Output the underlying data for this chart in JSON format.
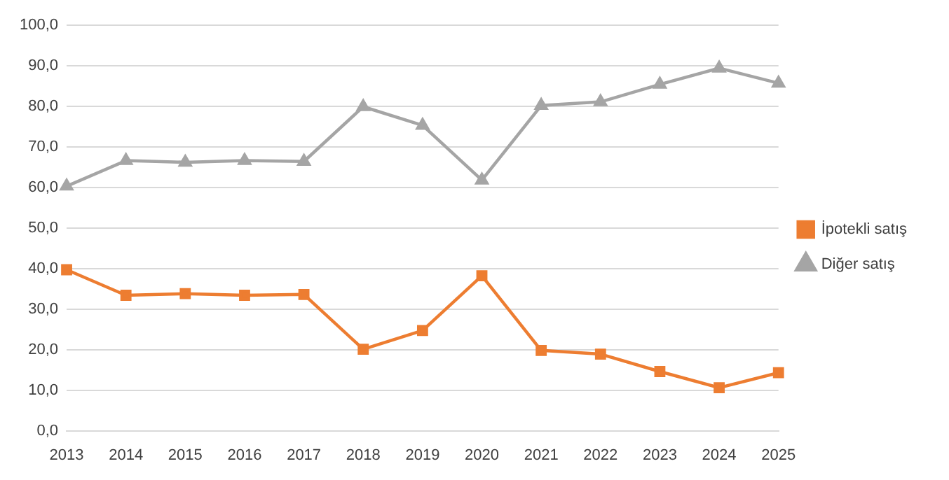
{
  "chart_data": {
    "type": "line",
    "categories": [
      "2013",
      "2014",
      "2015",
      "2016",
      "2017",
      "2018",
      "2019",
      "2020",
      "2021",
      "2022",
      "2023",
      "2024",
      "2025"
    ],
    "series": [
      {
        "name": "İpotekli satış",
        "color": "#ed7d31",
        "marker": "square",
        "values": [
          39.7,
          33.4,
          33.8,
          33.4,
          33.6,
          20.1,
          24.7,
          38.2,
          19.8,
          18.9,
          14.6,
          10.6,
          14.3
        ]
      },
      {
        "name": "Diğer satış",
        "color": "#a5a5a5",
        "marker": "triangle",
        "values": [
          60.3,
          66.6,
          66.2,
          66.6,
          66.4,
          79.9,
          75.3,
          61.8,
          80.2,
          81.1,
          85.4,
          89.4,
          85.7
        ]
      }
    ],
    "ylim": [
      0,
      100
    ],
    "yticks": [
      {
        "value": 0,
        "label": "0,0"
      },
      {
        "value": 10,
        "label": "10,0"
      },
      {
        "value": 20,
        "label": "20,0"
      },
      {
        "value": 30,
        "label": "30,0"
      },
      {
        "value": 40,
        "label": "40,0"
      },
      {
        "value": 50,
        "label": "50,0"
      },
      {
        "value": 60,
        "label": "60,0"
      },
      {
        "value": 70,
        "label": "70,0"
      },
      {
        "value": 80,
        "label": "80,0"
      },
      {
        "value": 90,
        "label": "90,0"
      },
      {
        "value": 100,
        "label": "100,0"
      }
    ],
    "grid": "y",
    "legend": "right",
    "line_style": "solid"
  }
}
